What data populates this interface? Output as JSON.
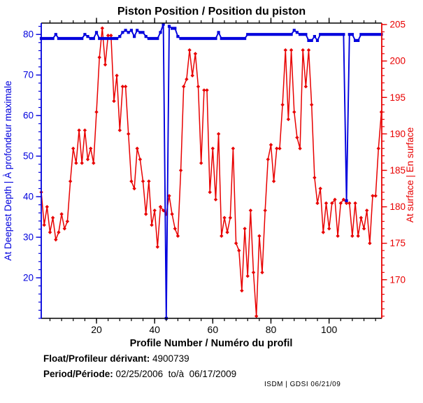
{
  "title": "Piston Position / Position du piston",
  "footer": {
    "float_label": "Float/Profileur dérivant:",
    "float_value": "4900739",
    "period_label": "Period/Période:",
    "period_value": "02/25/2006  to/à  06/17/2009",
    "credit": "ISDM | GDSI 06/21/09"
  },
  "colors": {
    "deep_blue": "#0000dd",
    "surface_red": "#e80000",
    "frame_black": "#000000"
  },
  "chart_data": {
    "type": "line",
    "title": "Piston Position / Position du piston",
    "xlabel": "Profile Number / Numéro du profil",
    "ylabel_left": "At Deepest Depth | À profondeur maximale",
    "ylabel_right": "At surface | En surface",
    "xlim": [
      1,
      118
    ],
    "x_ticks": [
      20,
      40,
      60,
      80,
      100
    ],
    "x_minor_step": 4,
    "ylim_left": [
      10,
      82.8
    ],
    "yticks_left": [
      20,
      30,
      40,
      50,
      60,
      70,
      80
    ],
    "y_minor_step_left": 2,
    "ylim_right": [
      164.7,
      205.2
    ],
    "yticks_right": [
      170,
      175,
      180,
      185,
      190,
      195,
      200,
      205
    ],
    "y_minor_step_right": 1,
    "grid": false,
    "legend": "none",
    "x": [
      1,
      2,
      3,
      4,
      5,
      6,
      7,
      8,
      9,
      10,
      11,
      12,
      13,
      14,
      15,
      16,
      17,
      18,
      19,
      20,
      21,
      22,
      23,
      24,
      25,
      26,
      27,
      28,
      29,
      30,
      31,
      32,
      33,
      34,
      35,
      36,
      37,
      38,
      39,
      40,
      41,
      42,
      43,
      44,
      45,
      46,
      47,
      48,
      49,
      50,
      51,
      52,
      53,
      54,
      55,
      56,
      57,
      58,
      59,
      60,
      61,
      62,
      63,
      64,
      65,
      66,
      67,
      68,
      69,
      70,
      71,
      72,
      73,
      74,
      75,
      76,
      77,
      78,
      79,
      80,
      81,
      82,
      83,
      84,
      85,
      86,
      87,
      88,
      89,
      90,
      91,
      92,
      93,
      94,
      95,
      96,
      97,
      98,
      99,
      100,
      101,
      102,
      103,
      104,
      105,
      106,
      107,
      108,
      109,
      110,
      111,
      112,
      113,
      114,
      115,
      116,
      117,
      118
    ],
    "series": [
      {
        "name": "At surface | En surface",
        "axis": "right",
        "color": "#e80000",
        "marker": "diamond",
        "values": [
          182,
          177.5,
          180,
          176.5,
          178.5,
          175.5,
          176.5,
          179,
          177,
          178,
          183.5,
          188,
          186,
          190.5,
          186,
          190.5,
          186.5,
          188,
          186,
          193,
          200.5,
          204.5,
          199.5,
          203.5,
          203.5,
          194.5,
          198,
          190.5,
          196.5,
          196.5,
          190,
          183.5,
          182.5,
          188,
          186.5,
          183.5,
          179,
          183.5,
          177.5,
          179.5,
          174.5,
          180,
          179.5,
          179,
          181.5,
          179,
          177,
          176,
          185,
          196.5,
          197.5,
          201.5,
          198,
          201,
          196.5,
          186,
          196,
          196,
          182,
          188,
          181,
          190,
          176,
          178.5,
          176.5,
          178.5,
          188,
          175,
          174,
          168.5,
          177,
          170.5,
          179.5,
          171,
          165,
          176,
          171,
          179.5,
          186.5,
          188.5,
          183.5,
          188,
          188,
          194,
          201.5,
          192,
          201.5,
          193,
          189.5,
          188,
          201.5,
          196.5,
          201.5,
          194,
          184,
          180.5,
          182.5,
          176.5,
          180.5,
          177,
          180.5,
          181,
          176,
          180.5,
          181,
          180.5,
          180.5,
          176,
          180.5,
          176,
          178.5,
          177,
          179.5,
          175,
          181.5,
          181.5,
          188,
          193
        ]
      },
      {
        "name": "At Deepest Depth | À profondeur maximale",
        "axis": "left",
        "color": "#0000dd",
        "marker": "square",
        "values": [
          79,
          79,
          79,
          79,
          79,
          80,
          79,
          79,
          79,
          79,
          79,
          79,
          79,
          79,
          79,
          80,
          79.5,
          79,
          79,
          80.5,
          79,
          79,
          79,
          79,
          79,
          79,
          79,
          79.5,
          80.5,
          81,
          80.5,
          81,
          79.5,
          81,
          80.5,
          80.5,
          79.5,
          79,
          79,
          79,
          79,
          80.5,
          82.5,
          10,
          82,
          81.5,
          81.5,
          79.5,
          79,
          79,
          79,
          79,
          79,
          79,
          79,
          79,
          79,
          79,
          79,
          79,
          79,
          80.5,
          79,
          79,
          79,
          79,
          79,
          79,
          79,
          79,
          79,
          80,
          80,
          80,
          80,
          80,
          80,
          80,
          80,
          80,
          80,
          80,
          80,
          80,
          80,
          80,
          80,
          81,
          80.5,
          80,
          80,
          80,
          78.5,
          78.5,
          79.5,
          78.5,
          80,
          80,
          80,
          80,
          80,
          80,
          80,
          80,
          80,
          39,
          80,
          80,
          78.5,
          78.5,
          80,
          80,
          80,
          80,
          80,
          80,
          80,
          80
        ]
      }
    ]
  }
}
